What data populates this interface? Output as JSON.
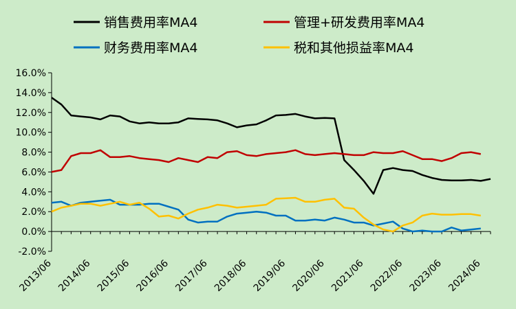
{
  "chart_data": {
    "type": "line",
    "title": "",
    "xlabel": "",
    "ylabel": "",
    "ylim": [
      -2.0,
      16.0
    ],
    "y_ticks": [
      "16.0%",
      "14.0%",
      "12.0%",
      "10.0%",
      "8.0%",
      "6.0%",
      "4.0%",
      "2.0%",
      "0.0%",
      "-2.0%"
    ],
    "y_tick_values": [
      16,
      14,
      12,
      10,
      8,
      6,
      4,
      2,
      0,
      -2
    ],
    "x_ticks": [
      "2013/06",
      "2014/06",
      "2015/06",
      "2016/06",
      "2017/06",
      "2018/06",
      "2019/06",
      "2020/06",
      "2021/06",
      "2022/06",
      "2023/06",
      "2024/06"
    ],
    "x_tick_index": [
      0,
      4,
      8,
      12,
      16,
      20,
      24,
      28,
      32,
      36,
      40,
      44
    ],
    "grid": false,
    "legend_position": "top",
    "series": [
      {
        "name": "销售费用率MA4",
        "color": "#000000",
        "values": [
          13.5,
          12.8,
          11.7,
          11.6,
          11.5,
          11.3,
          11.7,
          11.6,
          11.1,
          10.9,
          11.0,
          10.9,
          10.9,
          11.0,
          11.4,
          11.35,
          11.3,
          11.2,
          10.9,
          10.5,
          10.7,
          10.8,
          11.2,
          11.7,
          11.75,
          11.85,
          11.6,
          11.4,
          11.45,
          11.4,
          7.2,
          6.2,
          5.1,
          3.8,
          6.2,
          6.4,
          6.2,
          6.1,
          5.7,
          5.4,
          5.2,
          5.15,
          5.15,
          5.2,
          5.1,
          5.3
        ]
      },
      {
        "name": "管理+研发费用率MA4",
        "color": "#c00000",
        "values": [
          6.0,
          6.2,
          7.6,
          7.9,
          7.9,
          8.2,
          7.5,
          7.5,
          7.6,
          7.4,
          7.3,
          7.2,
          7.0,
          7.4,
          7.2,
          7.0,
          7.5,
          7.4,
          8.0,
          8.1,
          7.7,
          7.6,
          7.8,
          7.9,
          8.0,
          8.2,
          7.8,
          7.7,
          7.8,
          7.9,
          7.8,
          7.7,
          7.7,
          8.0,
          7.9,
          7.9,
          8.1,
          7.7,
          7.3,
          7.3,
          7.1,
          7.4,
          7.9,
          8.0,
          7.8
        ]
      },
      {
        "name": "财务费用率MA4",
        "color": "#0070c0",
        "values": [
          2.9,
          3.0,
          2.6,
          2.9,
          3.0,
          3.1,
          3.2,
          2.7,
          2.7,
          2.7,
          2.8,
          2.8,
          2.5,
          2.2,
          1.2,
          0.9,
          1.0,
          1.0,
          1.5,
          1.8,
          1.9,
          2.0,
          1.9,
          1.6,
          1.6,
          1.1,
          1.1,
          1.2,
          1.1,
          1.4,
          1.2,
          0.9,
          0.9,
          0.6,
          0.8,
          1.0,
          0.3,
          0.0,
          0.1,
          0.0,
          0.0,
          0.4,
          0.1,
          0.2,
          0.3
        ]
      },
      {
        "name": "税和其他损益率MA4",
        "color": "#ffc000",
        "values": [
          2.0,
          2.4,
          2.6,
          2.8,
          2.8,
          2.6,
          2.8,
          3.0,
          2.7,
          2.9,
          2.3,
          1.5,
          1.6,
          1.3,
          1.8,
          2.2,
          2.4,
          2.7,
          2.6,
          2.4,
          2.5,
          2.6,
          2.7,
          3.3,
          3.35,
          3.4,
          3.0,
          3.0,
          3.2,
          3.3,
          2.4,
          2.3,
          1.4,
          0.7,
          0.2,
          0.0,
          0.6,
          0.9,
          1.6,
          1.8,
          1.7,
          1.7,
          1.75,
          1.75,
          1.6
        ]
      }
    ]
  }
}
